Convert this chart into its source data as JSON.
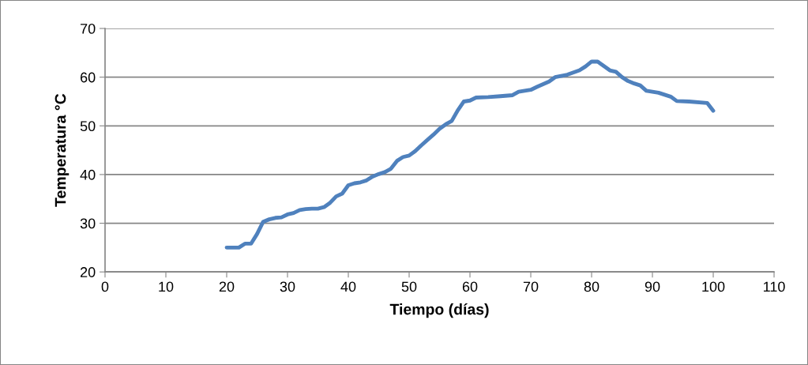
{
  "chart_data": {
    "type": "line",
    "xlabel": "Tiempo (días)",
    "ylabel": "Temperatura °C",
    "xlim": [
      0,
      110
    ],
    "xticks": [
      0,
      10,
      20,
      30,
      40,
      50,
      60,
      70,
      80,
      90,
      100,
      110
    ],
    "ylim": [
      20,
      70
    ],
    "yticks": [
      20,
      30,
      40,
      50,
      60,
      70
    ],
    "grid": "y",
    "marker": "none",
    "line_style": "solid",
    "series": [
      {
        "color": "#4f81bd",
        "x": [
          20,
          22,
          23,
          24,
          25,
          26,
          27,
          28,
          29,
          30,
          31,
          32,
          33,
          34,
          35,
          36,
          37,
          38,
          39,
          40,
          41,
          42,
          43,
          44,
          45,
          46,
          47,
          48,
          49,
          50,
          51,
          52,
          53,
          54,
          55,
          56,
          57,
          58,
          59,
          60,
          61,
          63,
          65,
          67,
          68,
          70,
          71,
          73,
          74,
          76,
          78,
          79,
          80,
          81,
          82,
          83,
          84,
          85,
          86,
          87,
          88,
          89,
          91,
          93,
          94,
          96,
          99,
          100
        ],
        "values": [
          25,
          25,
          25.8,
          25.8,
          27.8,
          30.3,
          30.8,
          31.1,
          31.2,
          31.8,
          32.1,
          32.7,
          32.9,
          33,
          33,
          33.3,
          34.2,
          35.5,
          36.1,
          37.8,
          38.2,
          38.4,
          38.8,
          39.6,
          40.1,
          40.5,
          41.2,
          42.8,
          43.6,
          43.9,
          44.8,
          46,
          47.1,
          48.2,
          49.4,
          50.3,
          51,
          53.2,
          55,
          55.2,
          55.8,
          55.9,
          56.1,
          56.3,
          57,
          57.4,
          58,
          59.1,
          60,
          60.5,
          61.4,
          62.2,
          63.2,
          63.2,
          62.3,
          61.4,
          61.1,
          60,
          59.2,
          58.7,
          58.3,
          57.2,
          56.8,
          56,
          55.1,
          55,
          54.7,
          53.1
        ]
      }
    ]
  }
}
